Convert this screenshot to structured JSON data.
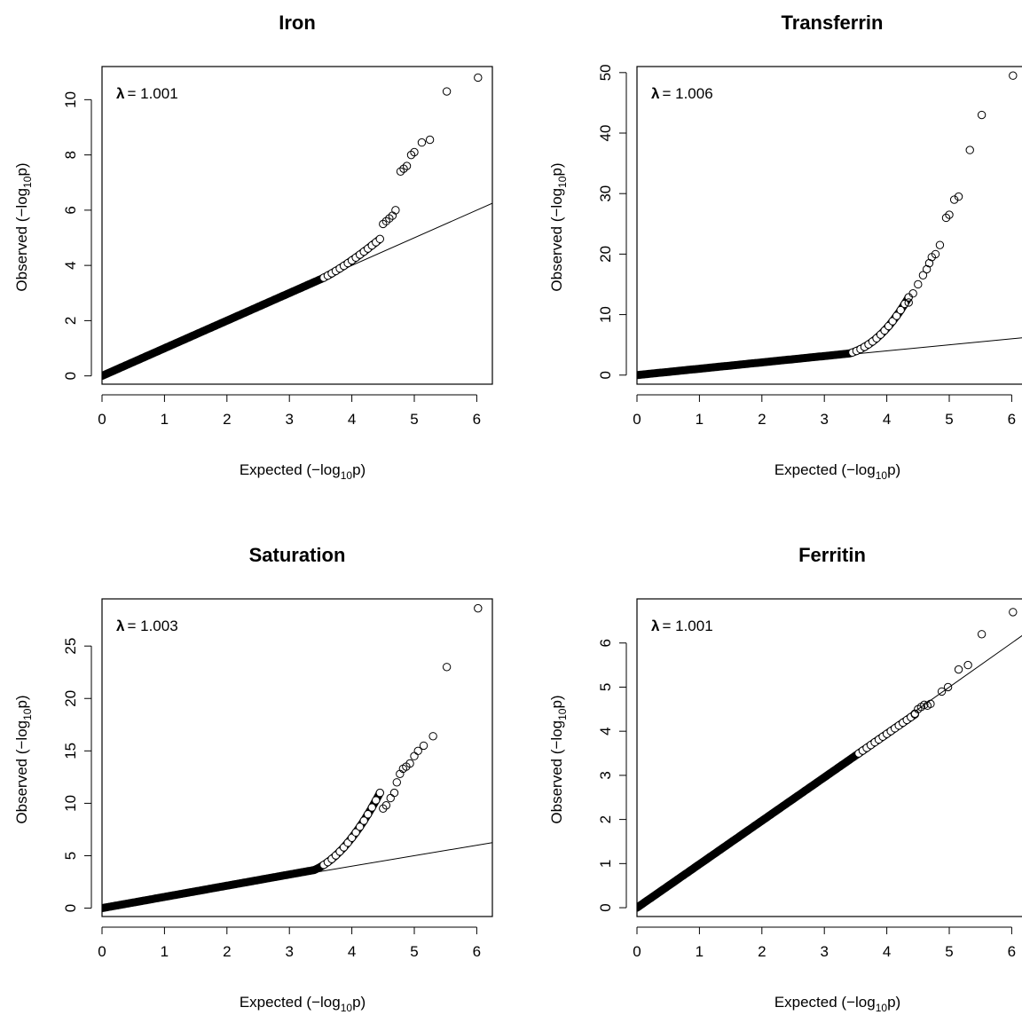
{
  "chart_data": [
    {
      "type": "scatter",
      "title": "Iron",
      "xlabel": {
        "main": "Expected (−log",
        "sub": "10",
        "end": "p)"
      },
      "ylabel": {
        "main": "Observed (−log",
        "sub": "10",
        "end": "p)"
      },
      "lambda_symbol": "λ",
      "lambda_value": "= 1.001",
      "xlim": [
        0,
        6.25
      ],
      "ylim": [
        -0.3,
        11.2
      ],
      "x_ticks": [
        0,
        1,
        2,
        3,
        4,
        5,
        6
      ],
      "y_ticks": [
        0,
        2,
        4,
        6,
        8,
        10
      ],
      "reference_line": {
        "slope": 1,
        "intercept": 0
      },
      "grid": false,
      "points": [
        [
          4.5,
          5.5
        ],
        [
          4.55,
          5.6
        ],
        [
          4.6,
          5.7
        ],
        [
          4.65,
          5.8
        ],
        [
          4.7,
          6.0
        ],
        [
          4.78,
          7.4
        ],
        [
          4.83,
          7.5
        ],
        [
          4.88,
          7.6
        ],
        [
          4.95,
          8.0
        ],
        [
          5.0,
          8.1
        ],
        [
          5.12,
          8.45
        ],
        [
          5.25,
          8.55
        ],
        [
          5.52,
          10.3
        ],
        [
          6.02,
          10.8
        ]
      ],
      "bulk": {
        "x0": 0,
        "x1": 4.45,
        "kind": "iron"
      }
    },
    {
      "type": "scatter",
      "title": "Transferrin",
      "xlabel": {
        "main": "Expected (−log",
        "sub": "10",
        "end": "p)"
      },
      "ylabel": {
        "main": "Observed (−log",
        "sub": "10",
        "end": "p)"
      },
      "lambda_symbol": "λ",
      "lambda_value": "= 1.006",
      "xlim": [
        0,
        6.25
      ],
      "ylim": [
        -1.5,
        51
      ],
      "x_ticks": [
        0,
        1,
        2,
        3,
        4,
        5,
        6
      ],
      "y_ticks": [
        0,
        10,
        20,
        30,
        40,
        50
      ],
      "reference_line": {
        "slope": 1,
        "intercept": 0
      },
      "grid": false,
      "points": [
        [
          4.35,
          12.0
        ],
        [
          4.42,
          13.5
        ],
        [
          4.5,
          15.0
        ],
        [
          4.58,
          16.5
        ],
        [
          4.64,
          17.5
        ],
        [
          4.68,
          18.5
        ],
        [
          4.72,
          19.5
        ],
        [
          4.78,
          20.0
        ],
        [
          4.85,
          21.5
        ],
        [
          4.95,
          26.0
        ],
        [
          5.0,
          26.5
        ],
        [
          5.08,
          29.0
        ],
        [
          5.15,
          29.5
        ],
        [
          5.33,
          37.2
        ],
        [
          5.52,
          43.0
        ],
        [
          6.02,
          49.5
        ]
      ],
      "bulk": {
        "x0": 0,
        "x1": 4.35,
        "kind": "transferrin"
      }
    },
    {
      "type": "scatter",
      "title": "Saturation",
      "xlabel": {
        "main": "Expected (−log",
        "sub": "10",
        "end": "p)"
      },
      "ylabel": {
        "main": "Observed (−log",
        "sub": "10",
        "end": "p)"
      },
      "lambda_symbol": "λ",
      "lambda_value": "= 1.003",
      "xlim": [
        0,
        6.25
      ],
      "ylim": [
        -0.8,
        29.5
      ],
      "x_ticks": [
        0,
        1,
        2,
        3,
        4,
        5,
        6
      ],
      "y_ticks": [
        0,
        5,
        10,
        15,
        20,
        25
      ],
      "reference_line": {
        "slope": 1,
        "intercept": 0
      },
      "grid": false,
      "points": [
        [
          4.5,
          9.5
        ],
        [
          4.55,
          9.8
        ],
        [
          4.62,
          10.5
        ],
        [
          4.68,
          11.0
        ],
        [
          4.72,
          12.0
        ],
        [
          4.77,
          12.8
        ],
        [
          4.82,
          13.3
        ],
        [
          4.87,
          13.5
        ],
        [
          4.93,
          13.8
        ],
        [
          5.0,
          14.5
        ],
        [
          5.06,
          15.0
        ],
        [
          5.15,
          15.5
        ],
        [
          5.3,
          16.4
        ],
        [
          5.52,
          23.0
        ],
        [
          6.02,
          28.6
        ]
      ],
      "bulk": {
        "x0": 0,
        "x1": 4.45,
        "kind": "saturation"
      }
    },
    {
      "type": "scatter",
      "title": "Ferritin",
      "xlabel": {
        "main": "Expected (−log",
        "sub": "10",
        "end": "p)"
      },
      "ylabel": {
        "main": "Observed (−log",
        "sub": "10",
        "end": "p)"
      },
      "lambda_symbol": "λ",
      "lambda_value": "= 1.001",
      "xlim": [
        0,
        6.25
      ],
      "ylim": [
        -0.2,
        7.0
      ],
      "x_ticks": [
        0,
        1,
        2,
        3,
        4,
        5,
        6
      ],
      "y_ticks": [
        0,
        1,
        2,
        3,
        4,
        5,
        6
      ],
      "reference_line": {
        "slope": 1,
        "intercept": 0
      },
      "grid": false,
      "points": [
        [
          4.45,
          4.4
        ],
        [
          4.5,
          4.5
        ],
        [
          4.55,
          4.55
        ],
        [
          4.6,
          4.6
        ],
        [
          4.65,
          4.58
        ],
        [
          4.7,
          4.62
        ],
        [
          4.88,
          4.9
        ],
        [
          4.98,
          5.0
        ],
        [
          5.15,
          5.4
        ],
        [
          5.3,
          5.5
        ],
        [
          5.52,
          6.2
        ],
        [
          6.02,
          6.7
        ]
      ],
      "bulk": {
        "x0": 0,
        "x1": 4.45,
        "kind": "ferritin"
      }
    }
  ]
}
